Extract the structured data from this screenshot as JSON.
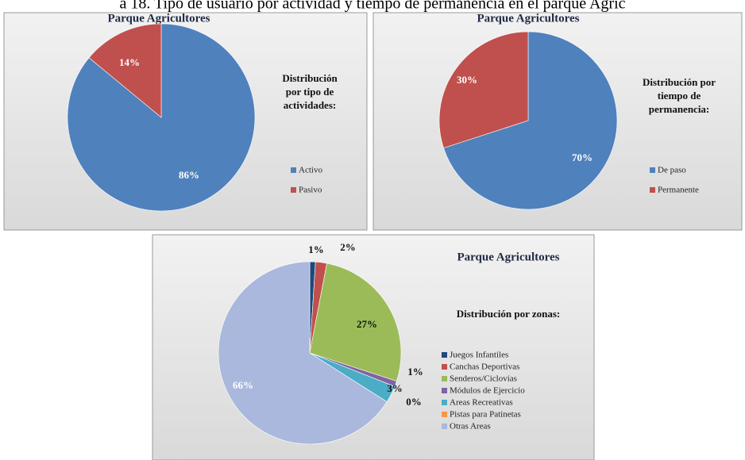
{
  "caption": "a 18. Tipo de usuario por actividad y tiempo de permanencia en el parque Agric",
  "chart_data": [
    {
      "type": "pie",
      "title": "Parque Agricultores",
      "subtitle": [
        "Distribución",
        "por tipo de",
        "actividades:"
      ],
      "categories": [
        "Activo",
        "Pasivo"
      ],
      "values": [
        86,
        14
      ],
      "value_labels": [
        "86%",
        "14%"
      ],
      "colors": [
        "#4f81bd",
        "#c0504d"
      ],
      "legend": "right"
    },
    {
      "type": "pie",
      "title": "Parque Agricultores",
      "subtitle": [
        "Distribución por",
        "tiempo de",
        "permanencia:"
      ],
      "categories": [
        "De paso",
        "Permanente"
      ],
      "values": [
        70,
        30
      ],
      "value_labels": [
        "70%",
        "30%"
      ],
      "colors": [
        "#4f81bd",
        "#c0504d"
      ],
      "legend": "right"
    },
    {
      "type": "pie",
      "title": "Parque Agricultores",
      "subtitle": [
        "Distribución  por zonas:"
      ],
      "categories": [
        "Juegos Infantiles",
        "Canchas Deportivas",
        "Senderos/Ciclovías",
        "Módulos de Ejercicio",
        "Areas Recreativas",
        "Pistas para Patinetas",
        "Otras Areas"
      ],
      "values": [
        1,
        2,
        27,
        1,
        3,
        0,
        66
      ],
      "value_labels": [
        "1%",
        "2%",
        "27%",
        "1%",
        "3%",
        "0%",
        "66%"
      ],
      "colors": [
        "#1f497d",
        "#c0504d",
        "#9bbb59",
        "#8064a2",
        "#4bacc6",
        "#f79646",
        "#a9b8dc"
      ],
      "legend": "right"
    }
  ]
}
